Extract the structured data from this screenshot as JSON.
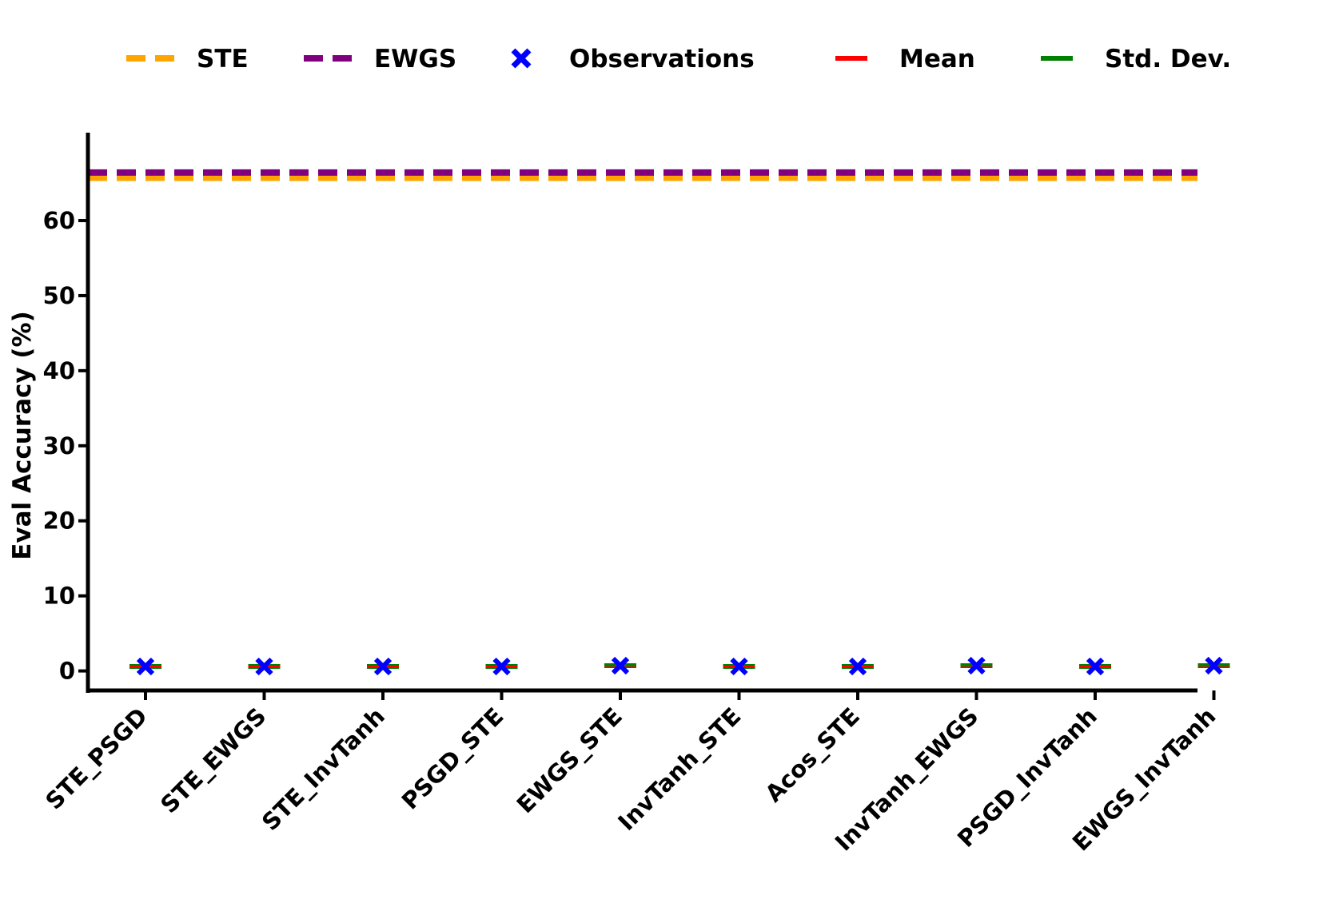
{
  "chart_data": {
    "type": "scatter",
    "title": "",
    "xlabel": "",
    "ylabel": "Eval Accuracy (%)",
    "ylim": [
      -2.6,
      71.5
    ],
    "yticks": [
      0,
      10,
      20,
      30,
      40,
      50,
      60
    ],
    "grid": false,
    "legend_position": "top",
    "categories": [
      "STE_PSGD",
      "STE_EWGS",
      "STE_InvTanh",
      "PSGD_STE",
      "EWGS_STE",
      "InvTanh_STE",
      "Acos_STE",
      "InvTanh_EWGS",
      "PSGD_InvTanh",
      "EWGS_InvTanh"
    ],
    "observations": [
      0.6,
      0.6,
      0.6,
      0.6,
      0.7,
      0.6,
      0.6,
      0.7,
      0.6,
      0.7
    ],
    "mean": [
      0.6,
      0.6,
      0.6,
      0.6,
      0.7,
      0.6,
      0.6,
      0.7,
      0.6,
      0.7
    ],
    "std_dev": [
      0.1,
      0.1,
      0.1,
      0.1,
      0.1,
      0.1,
      0.1,
      0.1,
      0.1,
      0.1
    ],
    "reference_lines": [
      {
        "name": "STE",
        "value": 65.7,
        "color": "#FFA500",
        "style": "dashed"
      },
      {
        "name": "EWGS",
        "value": 66.4,
        "color": "#800080",
        "style": "dashed"
      }
    ],
    "legend": [
      {
        "label": "STE",
        "kind": "dashed-line",
        "color": "#FFA500"
      },
      {
        "label": "EWGS",
        "kind": "dashed-line",
        "color": "#800080"
      },
      {
        "label": "Observations",
        "kind": "x-marker",
        "color": "#0000FF"
      },
      {
        "label": "Mean",
        "kind": "solid-line",
        "color": "#FF0000"
      },
      {
        "label": "Std. Dev.",
        "kind": "solid-line",
        "color": "#008000"
      }
    ],
    "colors": {
      "observations": "#0000FF",
      "mean": "#FF0000",
      "std_dev": "#008000"
    }
  }
}
